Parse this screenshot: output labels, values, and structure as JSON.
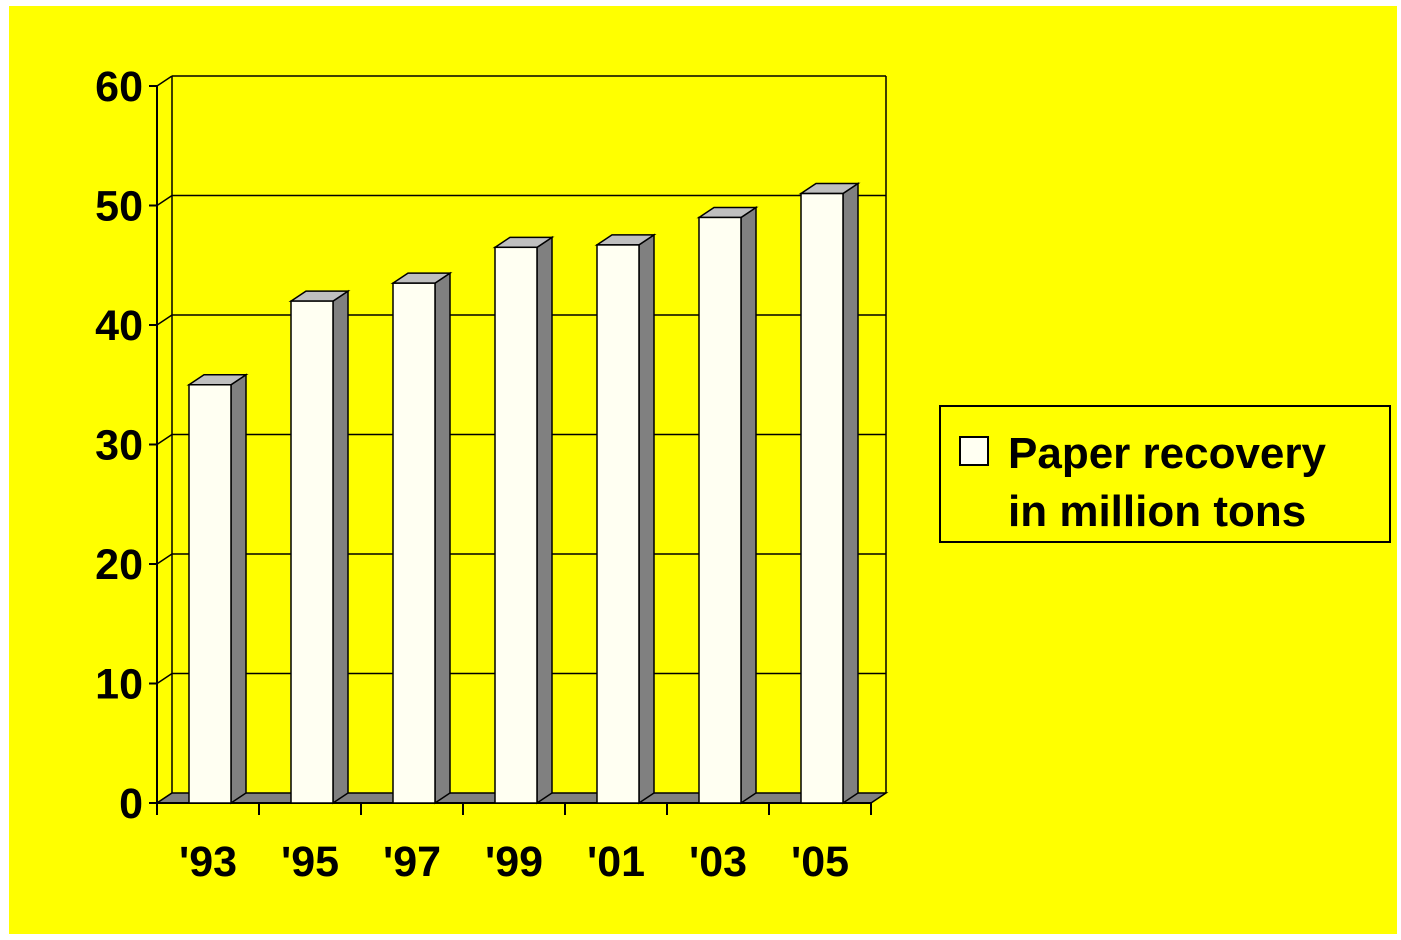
{
  "chart_data": {
    "type": "bar",
    "categories": [
      "'93",
      "'95",
      "'97",
      "'99",
      "'01",
      "'03",
      "'05"
    ],
    "series": [
      {
        "name": "Paper recovery in million tons",
        "values": [
          35,
          42,
          43.5,
          46.5,
          46.7,
          49,
          51
        ]
      }
    ],
    "y_ticks": [
      "0",
      "10",
      "20",
      "30",
      "40",
      "50",
      "60"
    ],
    "ylim": [
      0,
      60
    ],
    "grid": true,
    "legend": "right",
    "colors": {
      "background": "#ffff00",
      "bar_front": "#fffff2",
      "bar_top": "#bfbfbf",
      "bar_side": "#808080",
      "floor": "#808080",
      "grid": "#000000"
    }
  },
  "legend": {
    "label_line1": "Paper recovery",
    "label_line2": "in million tons"
  }
}
